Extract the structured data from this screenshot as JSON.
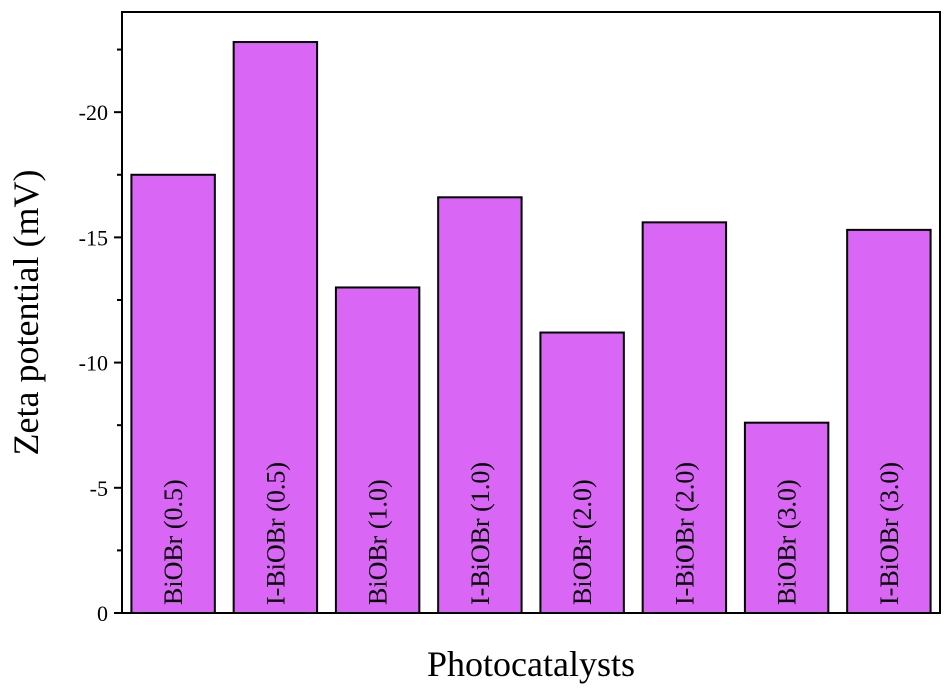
{
  "chart_data": {
    "type": "bar",
    "xlabel": "Photocatalysts",
    "ylabel": "Zeta potential (mV)",
    "categories": [
      "BiOBr (0.5)",
      "I-BiOBr (0.5)",
      "BiOBr (1.0)",
      "I-BiOBr (1.0)",
      "BiOBr (2.0)",
      "I-BiOBr (2.0)",
      "BiOBr (3.0)",
      "I-BiOBr (3.0)"
    ],
    "values": [
      -17.5,
      -22.8,
      -13.0,
      -16.6,
      -11.2,
      -15.6,
      -7.6,
      -15.3
    ],
    "ylim": [
      0,
      -24
    ],
    "y_axis_reversed": true,
    "yticks": [
      0,
      -5,
      -10,
      -15,
      -20
    ],
    "ytick_labels": [
      "0",
      "-5",
      "-10",
      "-15",
      "-20"
    ],
    "bar_color": "#d966f5",
    "grid": false,
    "bar_labels": "rotated inside bars"
  }
}
